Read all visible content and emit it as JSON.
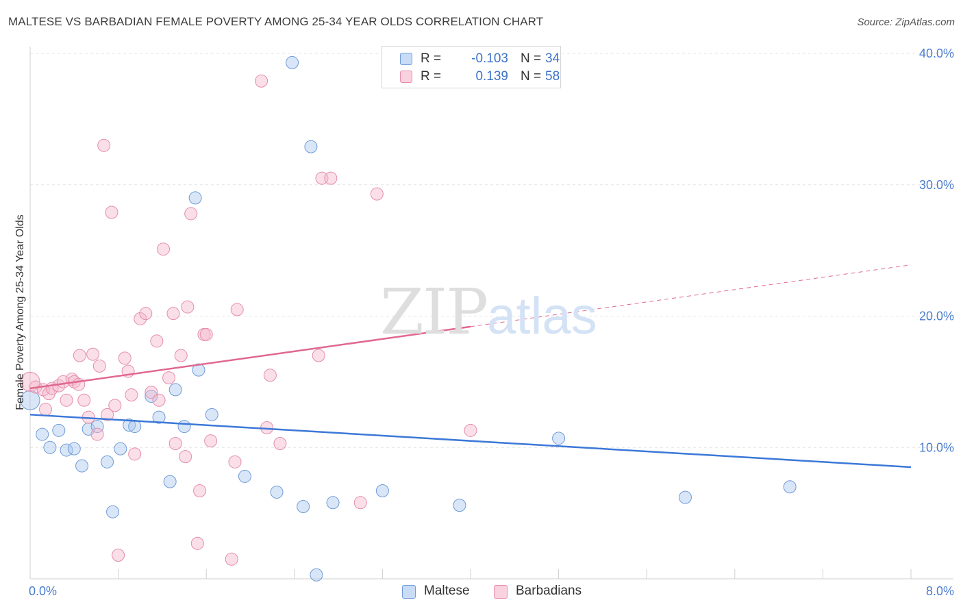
{
  "title": "MALTESE VS BARBADIAN FEMALE POVERTY AMONG 25-34 YEAR OLDS CORRELATION CHART",
  "source": "Source: ZipAtlas.com",
  "watermark": {
    "zip": "ZIP",
    "atlas": "atlas"
  },
  "legend_top": {
    "rows": [
      {
        "r_label": "R =",
        "r_value": "-0.103",
        "n_label": "N =",
        "n_value": "34",
        "color": "#a9c7ee"
      },
      {
        "r_label": "R =",
        "r_value": "0.139",
        "n_label": "N =",
        "n_value": "58",
        "color": "#f4b8cb"
      }
    ]
  },
  "legend_bottom": [
    "Maltese",
    "Barbadians"
  ],
  "chart_data": {
    "type": "scatter",
    "title": "MALTESE VS BARBADIAN FEMALE POVERTY AMONG 25-34 YEAR OLDS CORRELATION CHART",
    "xlabel": "",
    "ylabel": "Female Poverty Among 25-34 Year Olds",
    "xlim": [
      0,
      8
    ],
    "ylim": [
      0,
      40
    ],
    "x_tick_labels": [
      "0.0%",
      "8.0%"
    ],
    "y_ticks": [
      10,
      20,
      30,
      40
    ],
    "y_tick_labels": [
      "10.0%",
      "20.0%",
      "30.0%",
      "40.0%"
    ],
    "grid": true,
    "legend_position": "top-center",
    "colors": {
      "maltese": "#3c78d8",
      "barbadians": "#e0688f",
      "axis_text": "#4a7ccc"
    },
    "series": [
      {
        "name": "Maltese",
        "r": -0.103,
        "n": 34,
        "trend": {
          "x0": 0,
          "y0": 12.5,
          "x1": 8,
          "y1": 8.5
        },
        "points": [
          [
            0.0,
            13.6
          ],
          [
            0.11,
            11.0
          ],
          [
            0.18,
            10.0
          ],
          [
            0.26,
            11.3
          ],
          [
            0.33,
            9.8
          ],
          [
            0.4,
            9.9
          ],
          [
            0.47,
            8.6
          ],
          [
            0.53,
            11.4
          ],
          [
            0.61,
            11.6
          ],
          [
            0.7,
            8.9
          ],
          [
            0.75,
            5.1
          ],
          [
            0.82,
            9.9
          ],
          [
            0.9,
            11.7
          ],
          [
            0.95,
            11.6
          ],
          [
            1.1,
            13.9
          ],
          [
            1.17,
            12.3
          ],
          [
            1.27,
            7.4
          ],
          [
            1.32,
            14.4
          ],
          [
            1.4,
            11.6
          ],
          [
            1.5,
            29.0
          ],
          [
            1.53,
            15.9
          ],
          [
            1.65,
            12.5
          ],
          [
            1.95,
            7.8
          ],
          [
            2.24,
            6.6
          ],
          [
            2.38,
            39.3
          ],
          [
            2.48,
            5.5
          ],
          [
            2.55,
            32.9
          ],
          [
            2.6,
            0.3
          ],
          [
            2.75,
            5.8
          ],
          [
            3.2,
            6.7
          ],
          [
            3.9,
            5.6
          ],
          [
            4.8,
            10.7
          ],
          [
            5.95,
            6.2
          ],
          [
            6.9,
            7.0
          ]
        ]
      },
      {
        "name": "Barbadians",
        "r": 0.139,
        "n": 58,
        "trend": {
          "x0": 0,
          "y0": 14.5,
          "x1": 4.0,
          "y1": 19.2,
          "dash_x1": 8,
          "dash_y1": 23.9
        },
        "points": [
          [
            0.0,
            15.0
          ],
          [
            0.05,
            14.6
          ],
          [
            0.12,
            14.4
          ],
          [
            0.14,
            12.9
          ],
          [
            0.17,
            14.1
          ],
          [
            0.2,
            14.5
          ],
          [
            0.26,
            14.7
          ],
          [
            0.3,
            15.0
          ],
          [
            0.33,
            13.6
          ],
          [
            0.38,
            15.2
          ],
          [
            0.4,
            15.0
          ],
          [
            0.44,
            14.8
          ],
          [
            0.45,
            17.0
          ],
          [
            0.49,
            13.6
          ],
          [
            0.53,
            12.3
          ],
          [
            0.57,
            17.1
          ],
          [
            0.61,
            11.0
          ],
          [
            0.63,
            16.2
          ],
          [
            0.67,
            33.0
          ],
          [
            0.7,
            12.5
          ],
          [
            0.74,
            27.9
          ],
          [
            0.77,
            13.2
          ],
          [
            0.8,
            1.8
          ],
          [
            0.86,
            16.8
          ],
          [
            0.89,
            15.8
          ],
          [
            0.92,
            14.0
          ],
          [
            0.95,
            9.5
          ],
          [
            1.0,
            19.8
          ],
          [
            1.05,
            20.2
          ],
          [
            1.1,
            14.2
          ],
          [
            1.15,
            18.1
          ],
          [
            1.17,
            13.6
          ],
          [
            1.21,
            25.1
          ],
          [
            1.26,
            15.3
          ],
          [
            1.3,
            20.2
          ],
          [
            1.32,
            10.3
          ],
          [
            1.37,
            17.0
          ],
          [
            1.41,
            9.3
          ],
          [
            1.43,
            20.7
          ],
          [
            1.46,
            27.8
          ],
          [
            1.52,
            2.7
          ],
          [
            1.54,
            6.7
          ],
          [
            1.58,
            18.6
          ],
          [
            1.6,
            18.6
          ],
          [
            1.64,
            10.5
          ],
          [
            1.83,
            1.5
          ],
          [
            1.86,
            8.9
          ],
          [
            1.88,
            20.5
          ],
          [
            2.1,
            37.9
          ],
          [
            2.15,
            11.5
          ],
          [
            2.18,
            15.5
          ],
          [
            2.27,
            10.3
          ],
          [
            2.62,
            17.0
          ],
          [
            2.65,
            30.5
          ],
          [
            2.73,
            30.5
          ],
          [
            3.0,
            5.8
          ],
          [
            3.15,
            29.3
          ],
          [
            4.0,
            11.3
          ]
        ]
      }
    ]
  }
}
